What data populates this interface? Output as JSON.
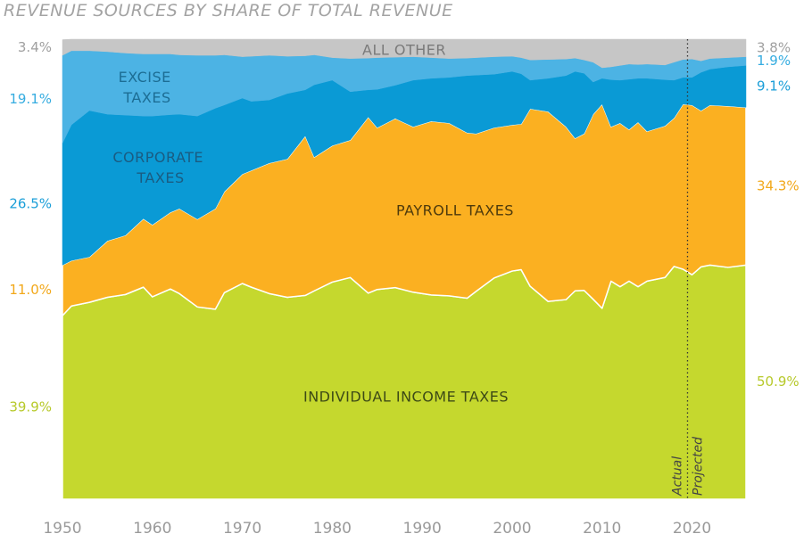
{
  "chart_data": {
    "type": "stacked_area",
    "title": "REVENUE SOURCES BY SHARE OF TOTAL REVENUE",
    "xlim": [
      1950,
      2026
    ],
    "ylim": [
      0,
      100
    ],
    "xticks": [
      1950,
      1960,
      1970,
      1980,
      1990,
      2000,
      2010,
      2020
    ],
    "x": [
      1950,
      1951,
      1953,
      1955,
      1957,
      1959,
      1960,
      1962,
      1963,
      1965,
      1967,
      1968,
      1970,
      1971,
      1973,
      1975,
      1977,
      1978,
      1980,
      1982,
      1984,
      1985,
      1987,
      1989,
      1991,
      1993,
      1995,
      1996,
      1998,
      2000,
      2001,
      2002,
      2004,
      2006,
      2007,
      2008,
      2009,
      2010,
      2011,
      2012,
      2013,
      2014,
      2015,
      2017,
      2018,
      2019,
      2020,
      2021,
      2022,
      2024,
      2026
    ],
    "series": [
      {
        "name": "INDIVIDUAL INCOME TAXES",
        "color": "#c5d82e",
        "values": [
          39.9,
          42.0,
          42.8,
          43.9,
          44.5,
          46.1,
          44.0,
          45.7,
          44.7,
          41.8,
          41.3,
          44.9,
          46.9,
          46.1,
          44.7,
          43.9,
          44.3,
          45.3,
          47.2,
          48.2,
          44.8,
          45.6,
          46.0,
          45.0,
          44.4,
          44.2,
          43.7,
          45.2,
          48.1,
          49.6,
          49.9,
          46.3,
          43.0,
          43.4,
          45.3,
          45.4,
          43.5,
          41.5,
          47.4,
          46.2,
          47.4,
          46.2,
          47.4,
          48.2,
          50.6,
          50.0,
          48.8,
          50.5,
          50.9,
          50.4,
          50.9
        ],
        "value_labels": [
          "39.9%",
          null,
          null,
          null,
          null,
          null,
          null,
          null,
          null,
          null,
          null,
          null,
          null,
          null,
          null,
          null,
          null,
          null,
          null,
          null,
          null,
          null,
          null,
          null,
          null,
          null,
          null,
          null,
          null,
          null,
          null,
          null,
          null,
          null,
          null,
          null,
          null,
          null,
          null,
          null,
          null,
          null,
          null,
          null,
          null,
          null,
          null,
          null,
          null,
          null,
          "50.9%"
        ]
      },
      {
        "name": "PAYROLL TAXES",
        "color": "#fbb021",
        "values": [
          11.0,
          9.9,
          9.9,
          12.3,
          12.9,
          14.9,
          15.7,
          16.7,
          18.5,
          19.1,
          21.9,
          22.0,
          23.8,
          25.4,
          28.4,
          30.1,
          34.7,
          29.1,
          29.7,
          29.9,
          38.3,
          35.2,
          36.8,
          36.0,
          37.8,
          37.6,
          36.0,
          34.3,
          32.7,
          31.8,
          31.7,
          38.6,
          41.3,
          37.6,
          33.2,
          34.1,
          40.2,
          44.4,
          33.6,
          35.6,
          33.0,
          35.8,
          32.6,
          33.0,
          32.3,
          35.9,
          36.9,
          34.0,
          34.8,
          35.1,
          34.3
        ],
        "value_labels": [
          "11.0%",
          null,
          null,
          null,
          null,
          null,
          null,
          null,
          null,
          null,
          null,
          null,
          null,
          null,
          null,
          null,
          null,
          null,
          null,
          null,
          null,
          null,
          null,
          null,
          null,
          null,
          null,
          null,
          null,
          null,
          null,
          null,
          null,
          null,
          null,
          null,
          null,
          null,
          null,
          null,
          null,
          null,
          null,
          null,
          null,
          null,
          null,
          null,
          null,
          null,
          "34.3%"
        ]
      },
      {
        "name": "CORPORATE TAXES",
        "color": "#0a9ad5",
        "values": [
          26.5,
          29.5,
          31.8,
          27.5,
          26.1,
          22.3,
          23.6,
          21.2,
          20.5,
          22.4,
          21.8,
          18.8,
          16.5,
          15.0,
          13.7,
          14.2,
          10.0,
          15.7,
          14.2,
          10.5,
          5.9,
          8.3,
          7.2,
          10.1,
          9.3,
          9.9,
          12.4,
          12.7,
          11.6,
          11.6,
          10.9,
          6.2,
          7.2,
          11.1,
          14.5,
          13.1,
          7.0,
          5.6,
          10.2,
          9.3,
          10.9,
          9.5,
          11.5,
          10.0,
          8.2,
          5.8,
          6.0,
          8.3,
          7.8,
          8.5,
          9.1
        ],
        "value_labels": [
          "26.5%",
          null,
          null,
          null,
          null,
          null,
          null,
          null,
          null,
          null,
          null,
          null,
          null,
          null,
          null,
          null,
          null,
          null,
          null,
          null,
          null,
          null,
          null,
          null,
          null,
          null,
          null,
          null,
          null,
          null,
          null,
          null,
          null,
          null,
          null,
          null,
          null,
          null,
          null,
          null,
          null,
          null,
          null,
          null,
          null,
          null,
          null,
          null,
          null,
          null,
          "9.1%"
        ]
      },
      {
        "name": "EXCISE TAXES",
        "color": "#4cb3e4",
        "values": [
          19.1,
          16.1,
          13.0,
          13.6,
          13.5,
          13.5,
          13.5,
          13.2,
          12.9,
          13.2,
          11.5,
          10.9,
          9.0,
          9.8,
          9.7,
          8.1,
          7.4,
          6.5,
          4.9,
          7.2,
          6.9,
          6.9,
          6.1,
          5.1,
          4.5,
          4.1,
          3.8,
          3.8,
          3.8,
          3.3,
          3.5,
          4.4,
          4.1,
          3.6,
          2.9,
          2.9,
          4.3,
          2.3,
          2.8,
          3.2,
          3.3,
          3.0,
          3.1,
          3.2,
          3.9,
          3.9,
          4.0,
          2.5,
          2.3,
          2.0,
          1.9
        ],
        "value_labels": [
          "19.1%",
          null,
          null,
          null,
          null,
          null,
          null,
          null,
          null,
          null,
          null,
          null,
          null,
          null,
          null,
          null,
          null,
          null,
          null,
          null,
          null,
          null,
          null,
          null,
          null,
          null,
          null,
          null,
          null,
          null,
          null,
          null,
          null,
          null,
          null,
          null,
          null,
          null,
          null,
          null,
          null,
          null,
          null,
          null,
          null,
          null,
          null,
          null,
          null,
          null,
          "1.9%"
        ]
      },
      {
        "name": "ALL OTHER",
        "color": "#c6c6c6",
        "values": [
          3.4,
          2.5,
          2.5,
          2.7,
          3.0,
          3.2,
          3.2,
          3.2,
          3.4,
          3.5,
          3.5,
          3.4,
          3.8,
          3.7,
          3.5,
          3.7,
          3.6,
          3.4,
          4.0,
          4.2,
          4.1,
          4.0,
          3.9,
          3.8,
          4.0,
          4.2,
          4.1,
          4.0,
          3.8,
          3.7,
          4.0,
          4.5,
          4.4,
          4.3,
          4.1,
          4.5,
          5.0,
          6.2,
          6.0,
          5.7,
          5.4,
          5.5,
          5.4,
          5.6,
          5.0,
          4.4,
          4.3,
          4.7,
          4.2,
          4.0,
          3.8
        ],
        "value_labels": [
          "3.4%",
          null,
          null,
          null,
          null,
          null,
          null,
          null,
          null,
          null,
          null,
          null,
          null,
          null,
          null,
          null,
          null,
          null,
          null,
          null,
          null,
          null,
          null,
          null,
          null,
          null,
          null,
          null,
          null,
          null,
          null,
          null,
          null,
          null,
          null,
          null,
          null,
          null,
          null,
          null,
          null,
          null,
          null,
          null,
          null,
          null,
          null,
          null,
          null,
          null,
          "3.8%"
        ]
      }
    ],
    "divider": {
      "x": 2019.5,
      "left_text": "Actual",
      "right_text": "Projected"
    }
  }
}
